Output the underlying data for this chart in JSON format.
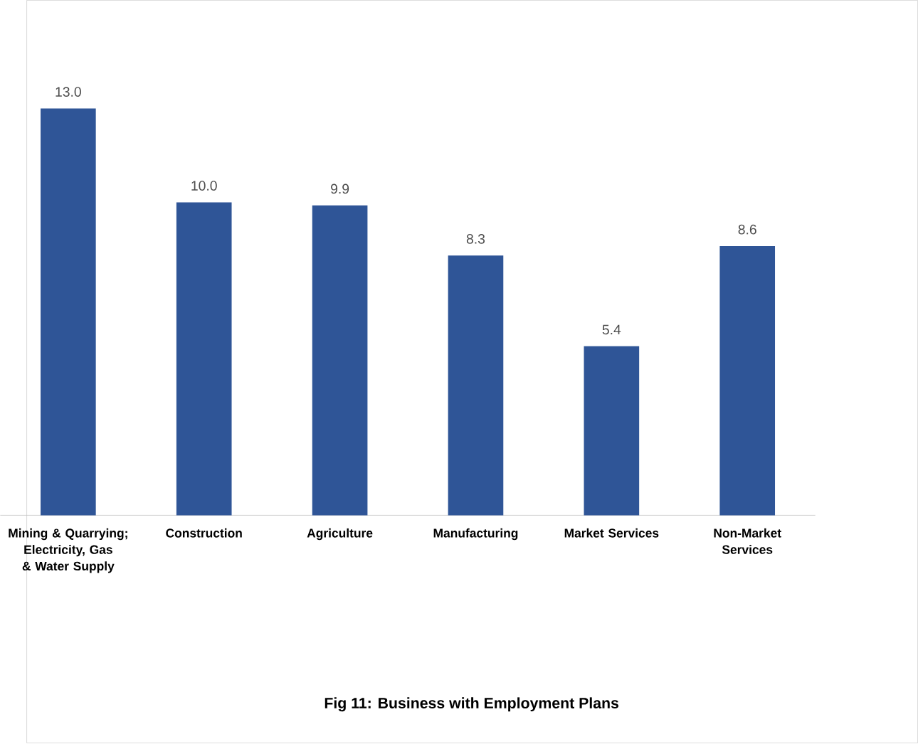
{
  "chart_data": {
    "type": "bar",
    "title": "Fig 11: Business with Employment Plans",
    "categories": [
      "Mining & Quarrying; Electricity, Gas & Water Supply",
      "Construction",
      "Agriculture",
      "Manufacturing",
      "Market Services",
      "Non-Market Services"
    ],
    "values": [
      13.0,
      10.0,
      9.9,
      8.3,
      5.4,
      8.6
    ],
    "value_labels": [
      "13.0",
      "10.0",
      "9.9",
      "8.3",
      "5.4",
      "8.6"
    ],
    "color": "#2f5597"
  }
}
